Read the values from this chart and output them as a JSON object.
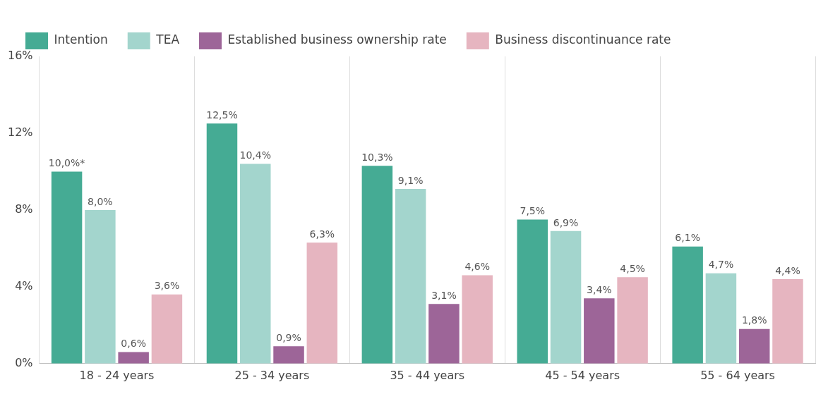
{
  "chart_data": {
    "type": "bar",
    "categories": [
      "18 - 24 years",
      "25 - 34 years",
      "35 - 44 years",
      "45 - 54 years",
      "55 - 64 years"
    ],
    "series": [
      {
        "name": "Intention",
        "color": "#45ab94",
        "values": [
          10.0,
          12.5,
          10.3,
          7.5,
          6.1
        ],
        "value_labels": [
          "10,0%*",
          "12,5%",
          "10,3%",
          "7,5%",
          "6,1%"
        ]
      },
      {
        "name": "TEA",
        "color": "#a3d5cd",
        "values": [
          8.0,
          10.4,
          9.1,
          6.9,
          4.7
        ],
        "value_labels": [
          "8,0%",
          "10,4%",
          "9,1%",
          "6,9%",
          "4,7%"
        ]
      },
      {
        "name": "Established business ownership rate",
        "color": "#9d6598",
        "values": [
          0.6,
          0.9,
          3.1,
          3.4,
          1.8
        ],
        "value_labels": [
          "0,6%",
          "0,9%",
          "3,1%",
          "3,4%",
          "1,8%"
        ]
      },
      {
        "name": "Business discontinuance rate",
        "color": "#e6b5c0",
        "values": [
          3.6,
          6.3,
          4.6,
          4.5,
          4.4
        ],
        "value_labels": [
          "3,6%",
          "6,3%",
          "4,6%",
          "4,5%",
          "4,4%"
        ]
      }
    ],
    "ylim": [
      0,
      16
    ],
    "yticks": [
      {
        "value": 0,
        "label": "0%"
      },
      {
        "value": 4,
        "label": "4%"
      },
      {
        "value": 8,
        "label": "8%"
      },
      {
        "value": 12,
        "label": "12%"
      },
      {
        "value": 16,
        "label": "16%"
      }
    ],
    "grid": "x",
    "legend": "top left"
  }
}
